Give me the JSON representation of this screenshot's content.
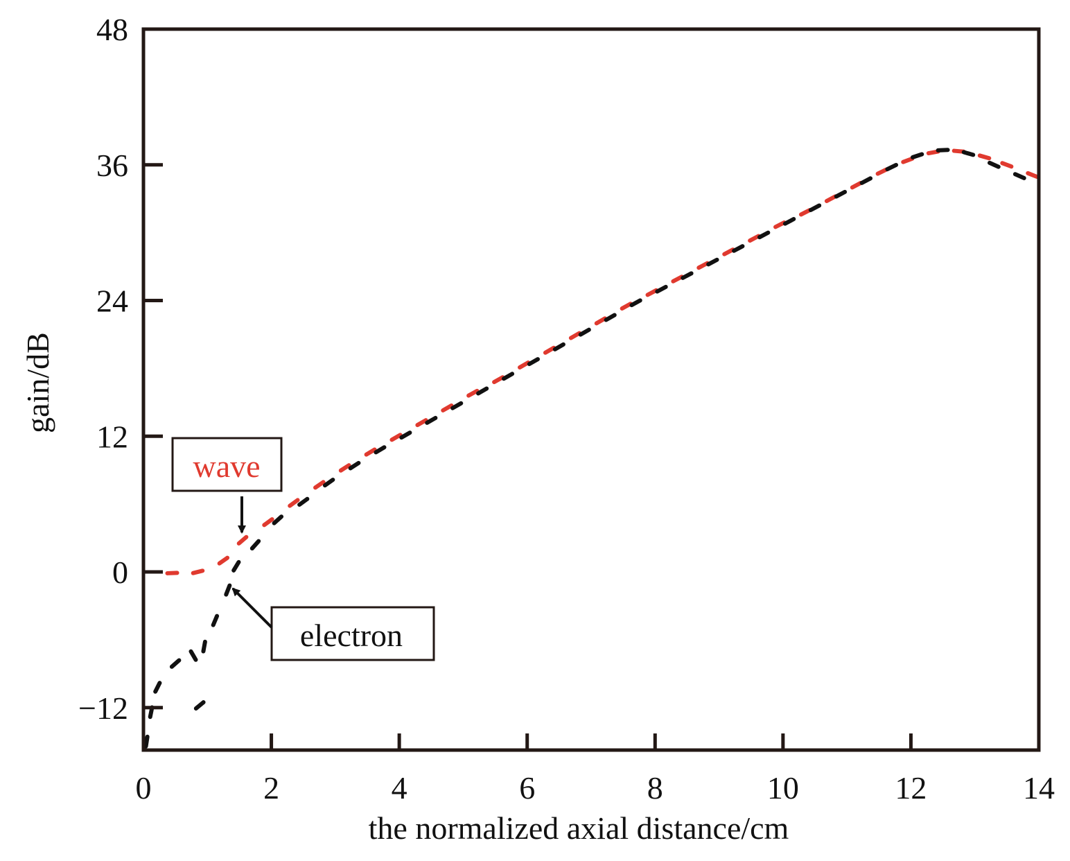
{
  "chart_data": {
    "type": "scatter",
    "title": "",
    "xlabel": "the normalized axial distance/cm",
    "ylabel": "gain/dB",
    "xlim": [
      0,
      14
    ],
    "ylim": [
      -15,
      48
    ],
    "xticks": [
      0,
      2,
      4,
      6,
      8,
      10,
      12,
      14
    ],
    "yticks": [
      -12,
      0,
      12,
      24,
      36,
      48
    ],
    "xtick_labels": [
      "0",
      "2",
      "4",
      "6",
      "8",
      "10",
      "12",
      "14"
    ],
    "ytick_labels": [
      "−12",
      "0",
      "12",
      "24",
      "36",
      "48"
    ],
    "grid": false,
    "series": [
      {
        "name": "wave",
        "color": "#e03a2f",
        "x": [
          0.45,
          0.85,
          1.25,
          1.55,
          1.95,
          2.35,
          2.75,
          3.15,
          3.55,
          3.95,
          4.35,
          4.75,
          5.15,
          5.55,
          5.95,
          6.35,
          6.75,
          7.15,
          7.55,
          7.95,
          8.35,
          8.75,
          9.15,
          9.55,
          9.95,
          10.35,
          10.75,
          11.15,
          11.55,
          11.95,
          12.35,
          12.75,
          13.15,
          13.5,
          13.9
        ],
        "y": [
          -0.1,
          0.0,
          1.0,
          2.8,
          4.4,
          6.1,
          7.7,
          9.2,
          10.6,
          11.9,
          13.2,
          14.5,
          15.8,
          17.0,
          18.3,
          19.6,
          20.9,
          22.2,
          23.5,
          24.7,
          25.9,
          27.1,
          28.3,
          29.5,
          30.7,
          31.8,
          33.0,
          34.2,
          35.4,
          36.4,
          37.1,
          37.2,
          36.7,
          36.0,
          35.1
        ]
      },
      {
        "name": "electron",
        "color": "#111111",
        "x": [
          0.05,
          0.12,
          0.22,
          0.5,
          0.78,
          0.88,
          0.95,
          1.12,
          1.32,
          1.45,
          1.75,
          2.1,
          2.5,
          2.9,
          3.3,
          3.7,
          4.1,
          4.5,
          4.9,
          5.3,
          5.7,
          6.1,
          6.5,
          6.9,
          7.3,
          7.7,
          8.1,
          8.5,
          8.9,
          9.3,
          9.7,
          10.1,
          10.5,
          10.9,
          11.3,
          11.7,
          12.1,
          12.5,
          12.9,
          13.3,
          13.7
        ],
        "y": [
          -15.0,
          -12.4,
          -10.2,
          -8.1,
          -7.4,
          -11.8,
          -6.6,
          -4.3,
          -1.6,
          0.5,
          2.4,
          4.6,
          6.2,
          7.9,
          9.4,
          10.8,
          12.1,
          13.4,
          14.7,
          16.0,
          17.3,
          18.6,
          19.9,
          21.2,
          22.5,
          23.8,
          25.0,
          26.2,
          27.4,
          28.6,
          29.8,
          31.0,
          32.2,
          33.4,
          34.6,
          35.8,
          36.8,
          37.3,
          37.0,
          36.0,
          35.0
        ]
      }
    ],
    "annotations": [
      {
        "text": "wave",
        "color": "#e03a2f",
        "points_to": "wave"
      },
      {
        "text": "electron",
        "color": "#111111",
        "points_to": "electron"
      }
    ]
  }
}
